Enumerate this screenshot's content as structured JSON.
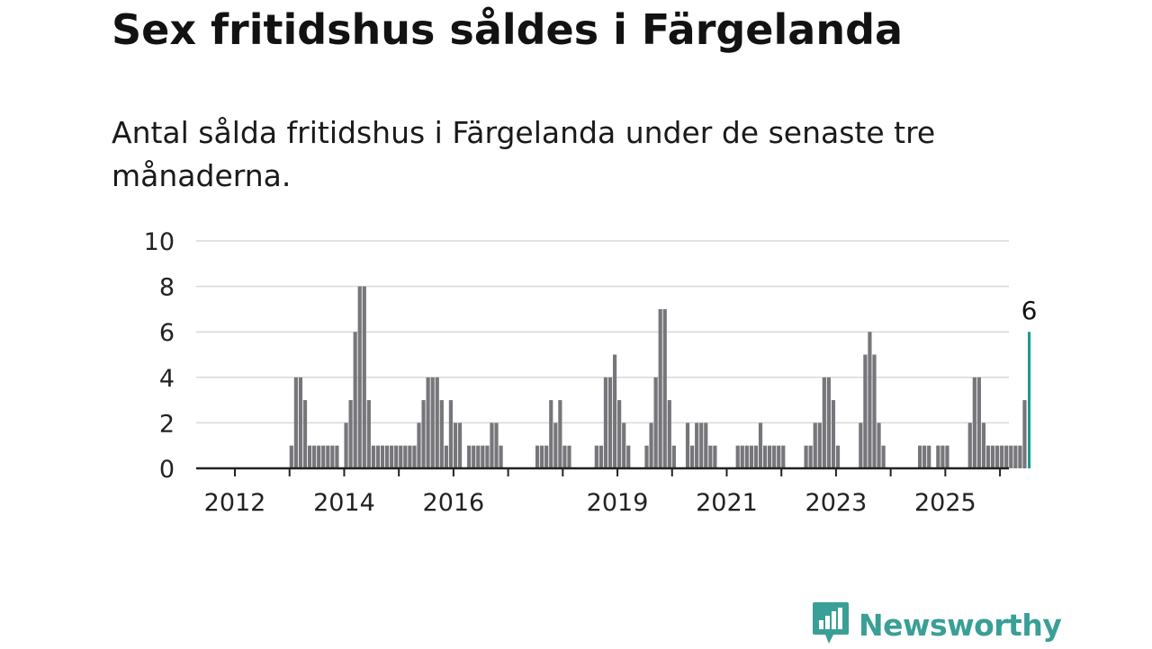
{
  "header": {
    "title": "Sex fritidshus såldes i Färgelanda",
    "subtitle": "Antal sålda fritidshus i Färgelanda under de senaste tre månaderna."
  },
  "brand": {
    "name": "Newsworthy",
    "icon": "newsworthy-logo-icon"
  },
  "colors": {
    "bar": "#77767b",
    "highlight": "#1a9990",
    "grid": "#d9d9d9",
    "axis": "#222222",
    "brand": "#3a9f96"
  },
  "chart_data": {
    "type": "bar",
    "x_start": "2012-01",
    "x_interval": "month",
    "y_ticks": [
      0,
      2,
      4,
      6,
      8,
      10
    ],
    "x_ticks": [
      "2012",
      "2014",
      "2016",
      "2019",
      "2021",
      "2023",
      "2025"
    ],
    "ylim": [
      0,
      10
    ],
    "grid": true,
    "highlight_label": "6",
    "values": [
      0,
      0,
      0,
      0,
      0,
      0,
      0,
      0,
      0,
      0,
      0,
      0,
      1,
      4,
      4,
      3,
      1,
      1,
      1,
      1,
      1,
      1,
      1,
      0,
      2,
      3,
      6,
      8,
      8,
      3,
      1,
      1,
      1,
      1,
      1,
      1,
      1,
      1,
      1,
      1,
      2,
      3,
      4,
      4,
      4,
      3,
      1,
      3,
      2,
      2,
      0,
      1,
      1,
      1,
      1,
      1,
      2,
      2,
      1,
      0,
      0,
      0,
      0,
      0,
      0,
      0,
      1,
      1,
      1,
      3,
      2,
      3,
      1,
      1,
      0,
      0,
      0,
      0,
      0,
      1,
      1,
      4,
      4,
      5,
      3,
      2,
      1,
      0,
      0,
      0,
      1,
      2,
      4,
      7,
      7,
      3,
      1,
      0,
      0,
      2,
      1,
      2,
      2,
      2,
      1,
      1,
      0,
      0,
      0,
      0,
      1,
      1,
      1,
      1,
      1,
      2,
      1,
      1,
      1,
      1,
      1,
      0,
      0,
      0,
      0,
      1,
      1,
      2,
      2,
      4,
      4,
      3,
      1,
      0,
      0,
      0,
      0,
      2,
      5,
      6,
      5,
      2,
      1,
      0,
      0,
      0,
      0,
      0,
      0,
      0,
      1,
      1,
      1,
      0,
      1,
      1,
      1,
      0,
      0,
      0,
      0,
      2,
      4,
      4,
      2,
      1,
      1,
      1,
      1,
      1,
      1,
      1,
      1,
      3,
      6
    ]
  }
}
